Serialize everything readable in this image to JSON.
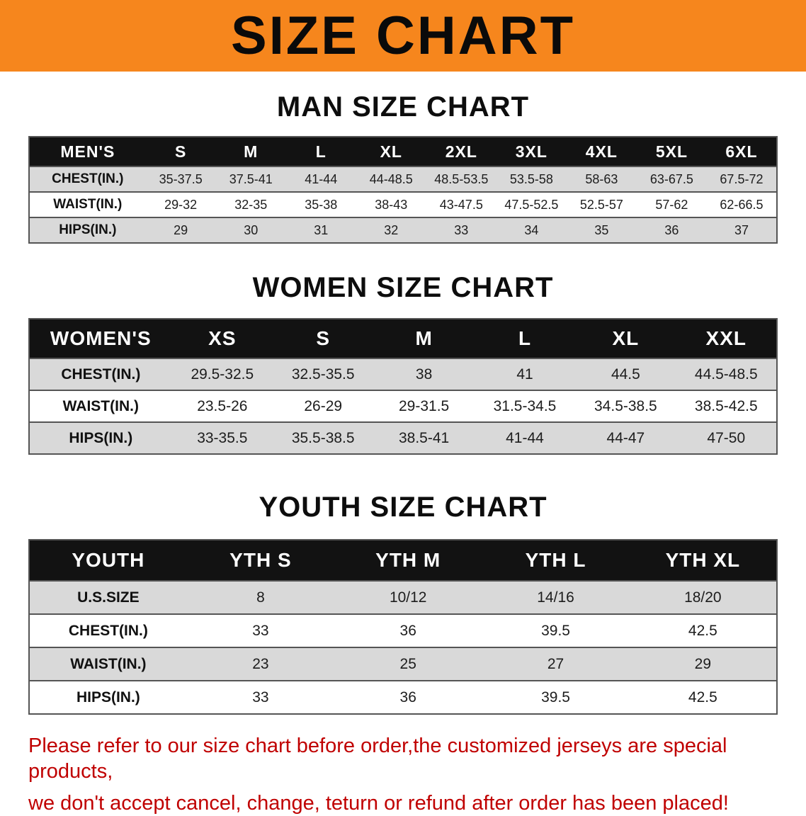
{
  "banner": {
    "title": "SIZE CHART"
  },
  "sections": [
    {
      "title": "MAN SIZE CHART",
      "table": {
        "header": [
          "MEN'S",
          "S",
          "M",
          "L",
          "XL",
          "2XL",
          "3XL",
          "4XL",
          "5XL",
          "6XL"
        ],
        "rows": [
          [
            "CHEST(IN.)",
            "35-37.5",
            "37.5-41",
            "41-44",
            "44-48.5",
            "48.5-53.5",
            "53.5-58",
            "58-63",
            "63-67.5",
            "67.5-72"
          ],
          [
            "WAIST(IN.)",
            "29-32",
            "32-35",
            "35-38",
            "38-43",
            "43-47.5",
            "47.5-52.5",
            "52.5-57",
            "57-62",
            "62-66.5"
          ],
          [
            "HIPS(IN.)",
            "29",
            "30",
            "31",
            "32",
            "33",
            "34",
            "35",
            "36",
            "37"
          ]
        ]
      }
    },
    {
      "title": "WOMEN SIZE CHART",
      "table": {
        "header": [
          "WOMEN'S",
          "XS",
          "S",
          "M",
          "L",
          "XL",
          "XXL"
        ],
        "rows": [
          [
            "CHEST(IN.)",
            "29.5-32.5",
            "32.5-35.5",
            "38",
            "41",
            "44.5",
            "44.5-48.5"
          ],
          [
            "WAIST(IN.)",
            "23.5-26",
            "26-29",
            "29-31.5",
            "31.5-34.5",
            "34.5-38.5",
            "38.5-42.5"
          ],
          [
            "HIPS(IN.)",
            "33-35.5",
            "35.5-38.5",
            "38.5-41",
            "41-44",
            "44-47",
            "47-50"
          ]
        ]
      }
    },
    {
      "title": "YOUTH SIZE CHART",
      "table": {
        "header": [
          "YOUTH",
          "YTH S",
          "YTH M",
          "YTH L",
          "YTH XL"
        ],
        "rows": [
          [
            "U.S.SIZE",
            "8",
            "10/12",
            "14/16",
            "18/20"
          ],
          [
            "CHEST(IN.)",
            "33",
            "36",
            "39.5",
            "42.5"
          ],
          [
            "WAIST(IN.)",
            "23",
            "25",
            "27",
            "29"
          ],
          [
            "HIPS(IN.)",
            "33",
            "36",
            "39.5",
            "42.5"
          ]
        ]
      }
    }
  ],
  "footer": {
    "line1": "Please refer to our size chart before order,the customized jerseys are special products,",
    "line2": "we don't accept cancel, change, teturn or refund after order has been placed!"
  },
  "colors": {
    "banner_bg": "#F6861D",
    "header_row_bg": "#121212",
    "header_row_text": "#FFFFFF",
    "alt_row_bg": "#D9D9D9",
    "table_border": "#555555",
    "footer_text": "#C00000",
    "title_text": "#0D0D0D"
  }
}
